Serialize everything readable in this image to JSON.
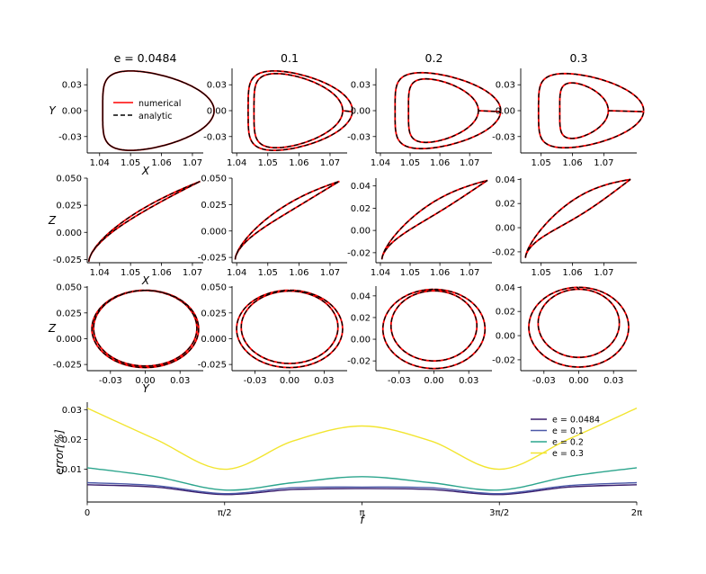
{
  "chart_data": [
    {
      "type": "line",
      "panel": "orbit grid",
      "column_titles": [
        "e = 0.0484",
        "0.1",
        "0.2",
        "0.3"
      ],
      "row_axis_labels": {
        "row1": {
          "xlabel": "X",
          "ylabel": "Y"
        },
        "row2": {
          "xlabel": "X",
          "ylabel": "Z"
        },
        "row3": {
          "xlabel": "Y",
          "ylabel": "Z"
        }
      },
      "legend": [
        "numerical",
        "analytic"
      ],
      "legend_colors": {
        "numerical": "#ff0000",
        "analytic": "#000000"
      },
      "panels": [
        {
          "row": 1,
          "col": 1,
          "e": 0.0484,
          "xlim": [
            1.036,
            1.0735
          ],
          "ylim": [
            -0.049,
            0.049
          ],
          "xticks": [
            "1.04",
            "1.05",
            "1.06",
            "1.07"
          ],
          "yticks": [
            "0.03",
            "0.00",
            "-0.03"
          ],
          "x_range": [
            1.0365,
            1.0725
          ],
          "y_amplitude": 0.046,
          "loop_gap": 0
        },
        {
          "row": 1,
          "col": 2,
          "e": 0.1,
          "xlim": [
            1.0385,
            1.0755
          ],
          "ylim": [
            -0.049,
            0.049
          ],
          "xticks": [
            "1.04",
            "1.05",
            "1.06",
            "1.07"
          ],
          "yticks": [
            "0.03",
            "0.00",
            "-0.03"
          ],
          "x_range": [
            1.0395,
            1.073
          ],
          "y_amplitude": 0.046,
          "loop_gap": 0.0025
        },
        {
          "row": 1,
          "col": 3,
          "e": 0.2,
          "xlim": [
            1.0385,
            1.0775
          ],
          "ylim": [
            -0.049,
            0.049
          ],
          "xticks": [
            "1.04",
            "1.05",
            "1.06",
            "1.07"
          ],
          "yticks": [
            "0.03",
            "0.00",
            "-0.03"
          ],
          "x_range": [
            1.0405,
            1.076
          ],
          "y_amplitude": 0.044,
          "loop_gap": 0.006
        },
        {
          "row": 1,
          "col": 4,
          "e": 0.3,
          "xlim": [
            1.0435,
            1.0805
          ],
          "ylim": [
            -0.049,
            0.049
          ],
          "xticks": [
            "1.05",
            "1.06",
            "1.07"
          ],
          "yticks": [
            "0.03",
            "0.00",
            "-0.03"
          ],
          "x_range": [
            1.045,
            1.0785
          ],
          "y_amplitude": 0.043,
          "loop_gap": 0.009
        },
        {
          "row": 2,
          "col": 1,
          "e": 0.0484,
          "xlim": [
            1.036,
            1.0735
          ],
          "ylim": [
            -0.028,
            0.05
          ],
          "xticks": [
            "1.04",
            "1.05",
            "1.06",
            "1.07"
          ],
          "yticks": [
            "0.050",
            "0.025",
            "0.000",
            "-0.025"
          ],
          "z_start": -0.027,
          "z_end": 0.047,
          "loop_gap": 0.0015
        },
        {
          "row": 2,
          "col": 2,
          "e": 0.1,
          "xlim": [
            1.0385,
            1.0755
          ],
          "ylim": [
            -0.03,
            0.05
          ],
          "xticks": [
            "1.04",
            "1.05",
            "1.06",
            "1.07"
          ],
          "yticks": [
            "0.050",
            "0.025",
            "0.000",
            "-0.025"
          ],
          "z_start": -0.027,
          "z_end": 0.047,
          "loop_gap": 0.004
        },
        {
          "row": 2,
          "col": 3,
          "e": 0.2,
          "xlim": [
            1.0385,
            1.0775
          ],
          "ylim": [
            -0.029,
            0.047
          ],
          "xticks": [
            "1.04",
            "1.05",
            "1.06",
            "1.07"
          ],
          "yticks": [
            "0.04",
            "0.02",
            "0.00",
            "-0.02"
          ],
          "z_start": -0.026,
          "z_end": 0.045,
          "loop_gap": 0.006
        },
        {
          "row": 2,
          "col": 4,
          "e": 0.3,
          "xlim": [
            1.0435,
            1.0805
          ],
          "ylim": [
            -0.029,
            0.041
          ],
          "xticks": [
            "1.05",
            "1.06",
            "1.07"
          ],
          "yticks": [
            "0.04",
            "0.02",
            "0.00",
            "-0.02"
          ],
          "z_start": -0.025,
          "z_end": 0.04,
          "loop_gap": 0.008
        },
        {
          "row": 3,
          "col": 1,
          "e": 0.0484,
          "xlim": [
            -0.05,
            0.05
          ],
          "ylim": [
            -0.031,
            0.051
          ],
          "xticks": [
            "-0.03",
            "0.00",
            "0.03"
          ],
          "yticks": [
            "0.050",
            "0.025",
            "0.000",
            "-0.025"
          ],
          "y_amplitude": 0.046,
          "z_range": [
            -0.028,
            0.047
          ],
          "loop_gap": 0.0015
        },
        {
          "row": 3,
          "col": 2,
          "e": 0.1,
          "xlim": [
            -0.05,
            0.05
          ],
          "ylim": [
            -0.031,
            0.051
          ],
          "xticks": [
            "-0.03",
            "0.00",
            "0.03"
          ],
          "yticks": [
            "0.050",
            "0.025",
            "0.000",
            "-0.025"
          ],
          "y_amplitude": 0.046,
          "z_range": [
            -0.028,
            0.047
          ],
          "loop_gap": 0.004
        },
        {
          "row": 3,
          "col": 3,
          "e": 0.2,
          "xlim": [
            -0.05,
            0.05
          ],
          "ylim": [
            -0.029,
            0.049
          ],
          "xticks": [
            "-0.03",
            "0.00",
            "0.03"
          ],
          "yticks": [
            "0.04",
            "0.02",
            "0.00",
            "-0.02"
          ],
          "y_amplitude": 0.044,
          "z_range": [
            -0.027,
            0.046
          ],
          "loop_gap": 0.007
        },
        {
          "row": 3,
          "col": 4,
          "e": 0.3,
          "xlim": [
            -0.05,
            0.05
          ],
          "ylim": [
            -0.029,
            0.041
          ],
          "xticks": [
            "-0.03",
            "0.00",
            "0.03"
          ],
          "yticks": [
            "0.04",
            "0.02",
            "0.00",
            "-0.02"
          ],
          "y_amplitude": 0.043,
          "z_range": [
            -0.026,
            0.04
          ],
          "loop_gap": 0.008
        }
      ]
    },
    {
      "type": "line",
      "panel": "error vs f",
      "xlabel": "f",
      "ylabel": "error[%]",
      "xlim": [
        0,
        6.2832
      ],
      "ylim": [
        -0.001,
        0.0325
      ],
      "xticks": [
        "0",
        "π/2",
        "π",
        "3π/2",
        "2π"
      ],
      "yticks": [
        "0.03",
        "0.02",
        "0.01"
      ],
      "legend_position": "top-right",
      "series": [
        {
          "name": "e = 0.0484",
          "color": "#3b1f6e",
          "x": [
            0,
            0.785,
            1.571,
            2.356,
            3.142,
            3.927,
            4.712,
            5.498,
            6.283
          ],
          "values": [
            0.0048,
            0.004,
            0.0015,
            0.0032,
            0.0035,
            0.0032,
            0.0015,
            0.004,
            0.0048
          ]
        },
        {
          "name": "e = 0.1",
          "color": "#4b59a8",
          "x": [
            0,
            0.785,
            1.571,
            2.356,
            3.142,
            3.927,
            4.712,
            5.498,
            6.283
          ],
          "values": [
            0.0055,
            0.0045,
            0.0018,
            0.0038,
            0.004,
            0.0038,
            0.0018,
            0.0045,
            0.0055
          ]
        },
        {
          "name": "e = 0.2",
          "color": "#2ca58d",
          "x": [
            0,
            0.785,
            1.571,
            2.356,
            3.142,
            3.927,
            4.712,
            5.498,
            6.283
          ],
          "values": [
            0.0105,
            0.0075,
            0.003,
            0.0055,
            0.0075,
            0.0055,
            0.003,
            0.0075,
            0.0105
          ]
        },
        {
          "name": "e = 0.3",
          "color": "#f2e530",
          "x": [
            0,
            0.785,
            1.571,
            2.356,
            3.142,
            3.927,
            4.712,
            5.498,
            6.283
          ],
          "values": [
            0.0305,
            0.02,
            0.01,
            0.0195,
            0.0245,
            0.0195,
            0.01,
            0.02,
            0.0305
          ]
        }
      ]
    }
  ]
}
